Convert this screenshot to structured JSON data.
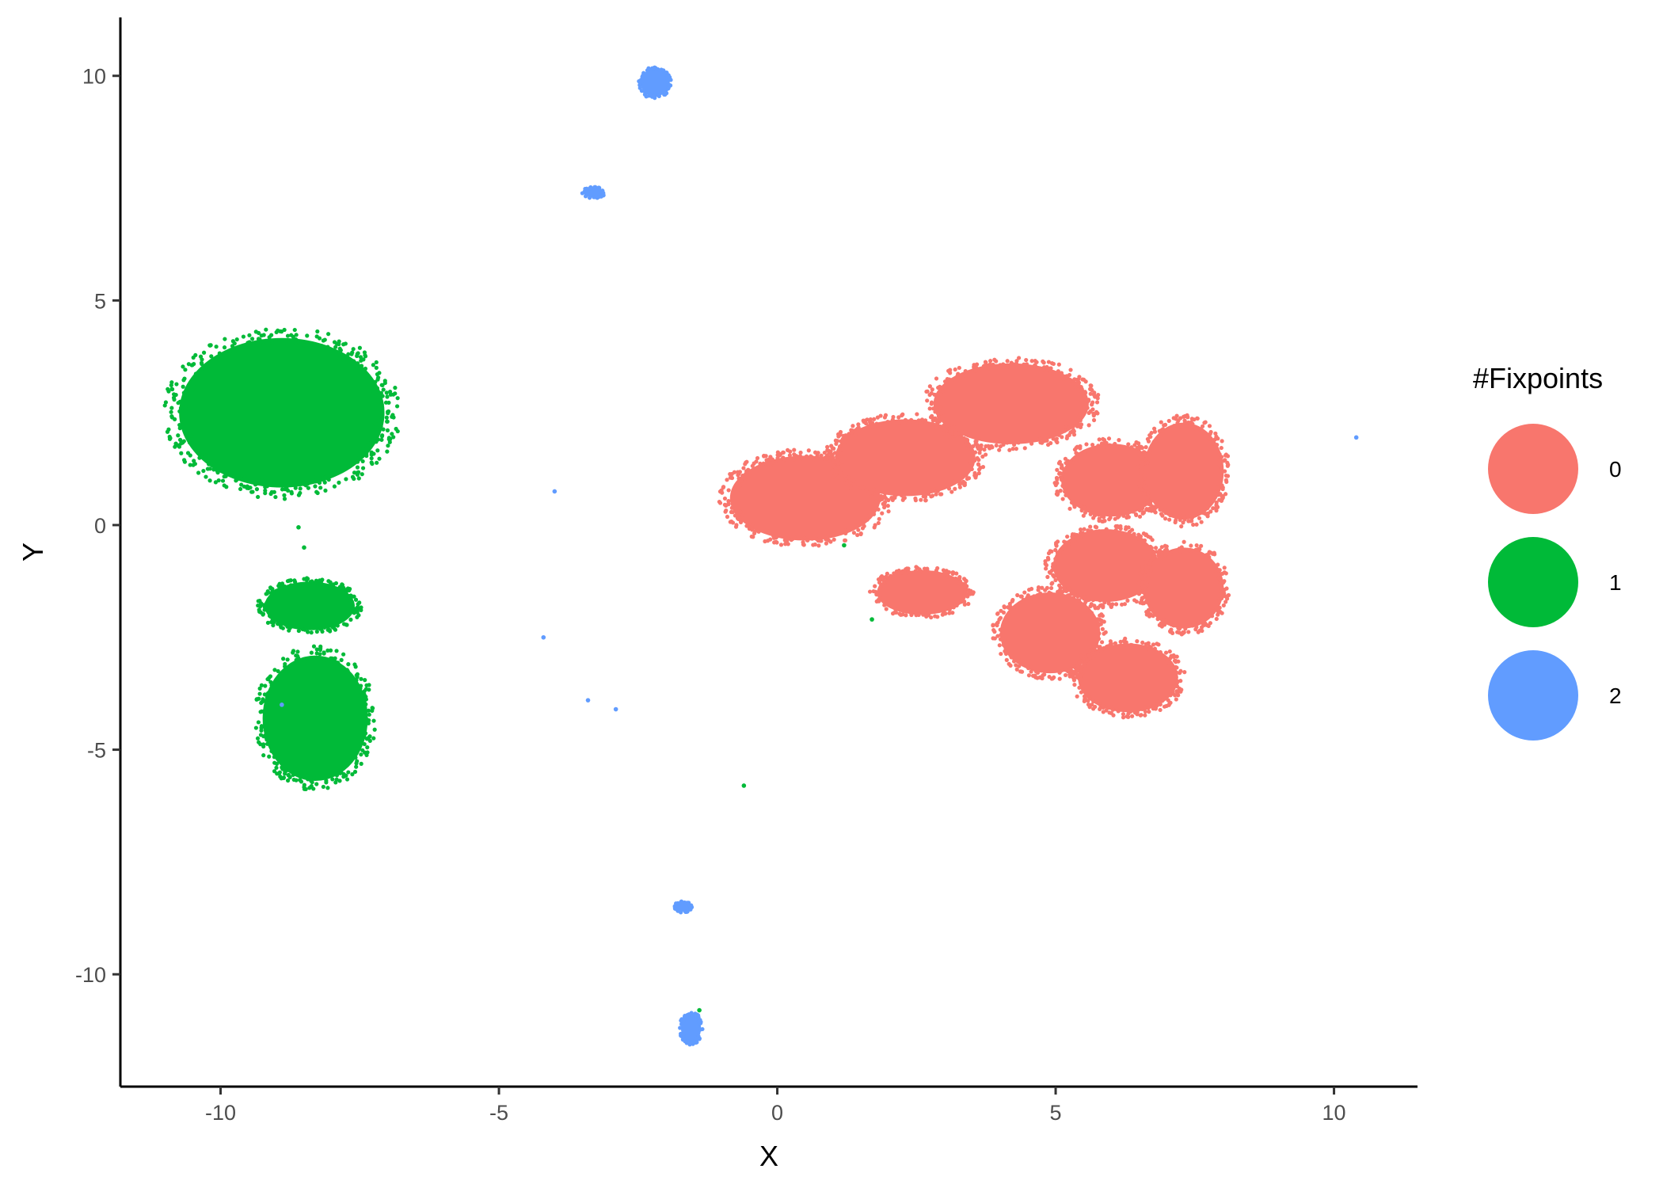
{
  "chart_data": {
    "type": "scatter",
    "title": "",
    "xlabel": "X",
    "ylabel": "Y",
    "xlim": [
      -11.8,
      11.5
    ],
    "ylim": [
      -12.5,
      11.3
    ],
    "x_ticks": [
      -10,
      -5,
      0,
      5,
      10
    ],
    "y_ticks": [
      -10,
      -5,
      0,
      5,
      10
    ],
    "x_tick_labels": [
      "-10",
      "-5",
      "0",
      "5",
      "10"
    ],
    "y_tick_labels": [
      "-10",
      "-5",
      "0",
      "5",
      "10"
    ],
    "grid": false,
    "legend": {
      "title": "#Fixpoints",
      "placement": "right"
    },
    "series": [
      {
        "name": "0",
        "color": "#F8766D",
        "clusters": [
          {
            "cx": 0.5,
            "cy": 0.6,
            "rx": 1.5,
            "ry": 1.05
          },
          {
            "cx": 2.3,
            "cy": 1.5,
            "rx": 1.4,
            "ry": 0.95
          },
          {
            "cx": 4.2,
            "cy": 2.7,
            "rx": 1.55,
            "ry": 1.0
          },
          {
            "cx": 6.0,
            "cy": 1.0,
            "rx": 1.0,
            "ry": 0.9
          },
          {
            "cx": 7.3,
            "cy": 1.2,
            "rx": 0.8,
            "ry": 1.2
          },
          {
            "cx": 5.9,
            "cy": -0.9,
            "rx": 1.05,
            "ry": 0.9
          },
          {
            "cx": 7.3,
            "cy": -1.4,
            "rx": 0.8,
            "ry": 1.0
          },
          {
            "cx": 4.9,
            "cy": -2.4,
            "rx": 1.0,
            "ry": 1.0
          },
          {
            "cx": 6.3,
            "cy": -3.4,
            "rx": 1.0,
            "ry": 0.85
          },
          {
            "cx": 2.6,
            "cy": -1.5,
            "rx": 0.9,
            "ry": 0.55
          }
        ],
        "points": []
      },
      {
        "name": "1",
        "color": "#00BA38",
        "clusters": [
          {
            "cx": -8.9,
            "cy": 2.5,
            "rx": 2.05,
            "ry": 1.85
          },
          {
            "cx": -8.4,
            "cy": -1.8,
            "rx": 0.9,
            "ry": 0.6
          },
          {
            "cx": -8.3,
            "cy": -4.3,
            "rx": 1.05,
            "ry": 1.55
          }
        ],
        "points": [
          [
            -8.6,
            -0.05
          ],
          [
            -8.5,
            -0.5
          ],
          [
            1.2,
            -0.45
          ],
          [
            -0.6,
            -5.8
          ],
          [
            1.7,
            -2.1
          ],
          [
            -1.4,
            -10.8
          ]
        ]
      },
      {
        "name": "2",
        "color": "#619CFF",
        "clusters": [
          {
            "cx": -2.2,
            "cy": 9.85,
            "rx": 0.28,
            "ry": 0.35
          },
          {
            "cx": -3.3,
            "cy": 7.4,
            "rx": 0.2,
            "ry": 0.12
          },
          {
            "cx": -1.7,
            "cy": -8.5,
            "rx": 0.16,
            "ry": 0.12
          },
          {
            "cx": -1.55,
            "cy": -11.2,
            "rx": 0.2,
            "ry": 0.35
          }
        ],
        "points": [
          [
            -4.0,
            0.75
          ],
          [
            -4.2,
            -2.5
          ],
          [
            -3.4,
            -3.9
          ],
          [
            -2.9,
            -4.1
          ],
          [
            -8.9,
            -4.0
          ],
          [
            10.4,
            1.95
          ]
        ]
      }
    ]
  }
}
